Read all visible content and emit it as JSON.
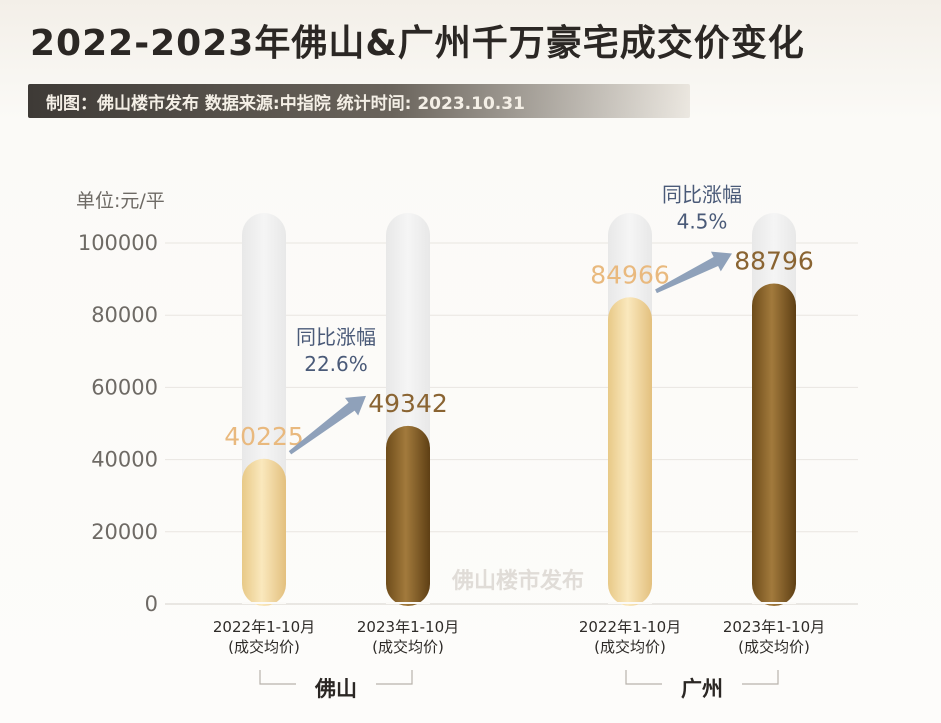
{
  "title": "2022-2023年佛山&广州千万豪宅成交价变化",
  "subtitle": "制图：佛山楼市发布    数据来源:中指院    统计时间: 2023.10.31",
  "unit_label": "单位:元/平",
  "watermark": "佛山楼市发布",
  "colors": {
    "bar_2022": "#f0d79e",
    "bar_2023": "#8a6428",
    "label_2022": "#e9b97e",
    "label_2023": "#8a6432",
    "track": "#eeeeee",
    "arrow": "#8fa1ba",
    "growth_text": "#4a5a78"
  },
  "chart_data": {
    "type": "bar",
    "ylim": [
      0,
      100000
    ],
    "yticks": [
      0,
      20000,
      40000,
      60000,
      80000,
      100000
    ],
    "ylabel": "单位:元/平",
    "groups": [
      {
        "name": "佛山",
        "bars": [
          {
            "label_line1": "2022年1-10月",
            "label_line2": "(成交均价)",
            "value": 40225
          },
          {
            "label_line1": "2023年1-10月",
            "label_line2": "(成交均价)",
            "value": 49342
          }
        ],
        "growth_label": "同比涨幅",
        "growth_value": "22.6%"
      },
      {
        "name": "广州",
        "bars": [
          {
            "label_line1": "2022年1-10月",
            "label_line2": "(成交均价)",
            "value": 84966
          },
          {
            "label_line1": "2023年1-10月",
            "label_line2": "(成交均价)",
            "value": 88796
          }
        ],
        "growth_label": "同比涨幅",
        "growth_value": "4.5%"
      }
    ]
  }
}
